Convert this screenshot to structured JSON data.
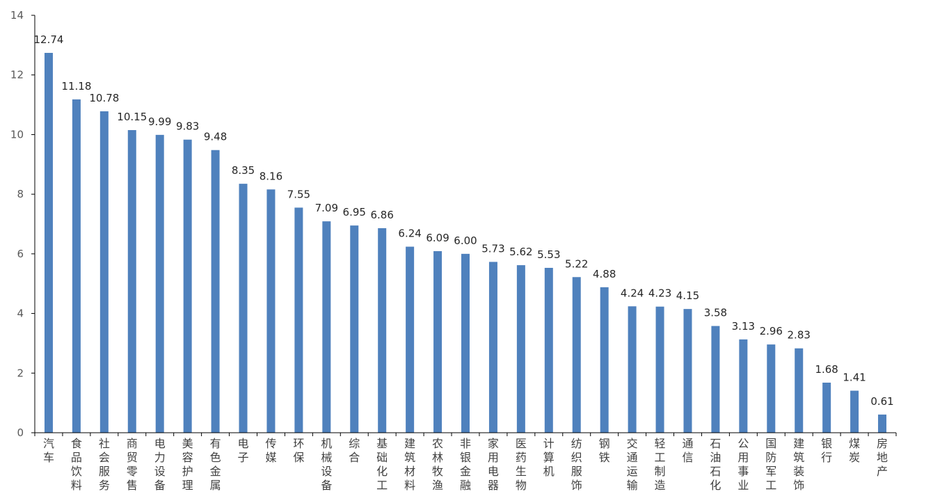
{
  "chart_data": {
    "type": "bar",
    "title": "",
    "xlabel": "",
    "ylabel": "",
    "ylim": [
      0,
      14
    ],
    "yticks": [
      0,
      2,
      4,
      6,
      8,
      10,
      12,
      14
    ],
    "grid": false,
    "legend": "none",
    "bar_color": "#4f81bd",
    "axis_color": "#000000",
    "categories": [
      "汽车",
      "食品饮料",
      "社会服务",
      "商贸零售",
      "电力设备",
      "美容护理",
      "有色金属",
      "电子",
      "传媒",
      "环保",
      "机械设备",
      "综合",
      "基础化工",
      "建筑材料",
      "农林牧渔",
      "非银金融",
      "家用电器",
      "医药生物",
      "计算机",
      "纺织服饰",
      "钢铁",
      "交通运输",
      "轻工制造",
      "通信",
      "石油石化",
      "公用事业",
      "国防军工",
      "建筑装饰",
      "银行",
      "煤炭",
      "房地产"
    ],
    "values": [
      12.74,
      11.18,
      10.78,
      10.15,
      9.99,
      9.83,
      9.48,
      8.35,
      8.16,
      7.55,
      7.09,
      6.95,
      6.86,
      6.24,
      6.09,
      6.0,
      5.73,
      5.62,
      5.53,
      5.22,
      4.88,
      4.24,
      4.23,
      4.15,
      3.58,
      3.13,
      2.96,
      2.83,
      1.68,
      1.41,
      0.61
    ],
    "value_labels": [
      "12.74",
      "11.18",
      "10.78",
      "10.15",
      "9.99",
      "9.83",
      "9.48",
      "8.35",
      "8.16",
      "7.55",
      "7.09",
      "6.95",
      "6.86",
      "6.24",
      "6.09",
      "6.00",
      "5.73",
      "5.62",
      "5.53",
      "5.22",
      "4.88",
      "4.24",
      "4.23",
      "4.15",
      "3.58",
      "3.13",
      "2.96",
      "2.83",
      "1.68",
      "1.41",
      "0.61"
    ]
  }
}
